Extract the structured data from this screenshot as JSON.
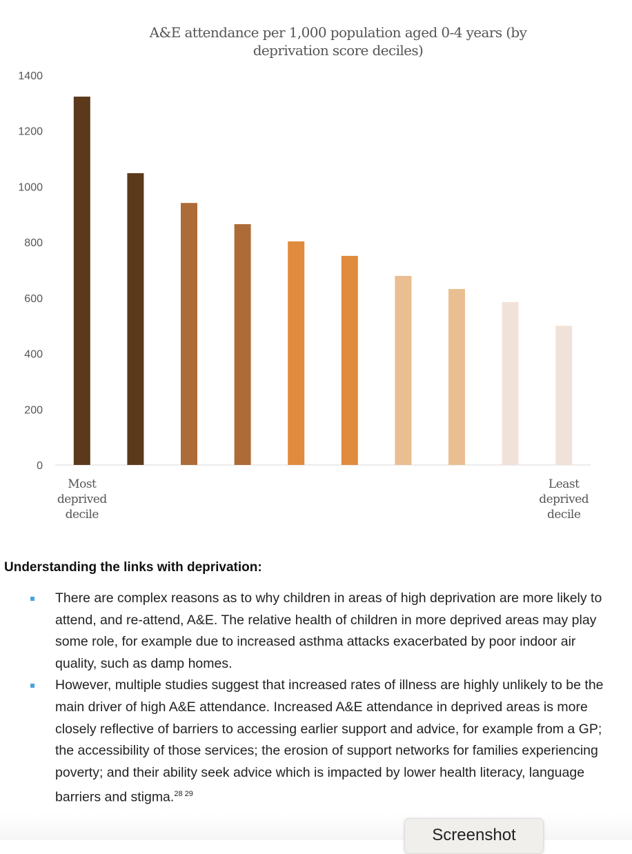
{
  "chart_data": {
    "type": "bar",
    "title": "A&E attendance per 1,000 population aged 0-4 years (by deprivation score deciles)",
    "categories": [
      "Most deprived decile",
      "",
      "",
      "",
      "",
      "",
      "",
      "",
      "",
      "Least deprived decile"
    ],
    "first_label": [
      "Most",
      "deprived",
      "decile"
    ],
    "last_label": [
      "Least",
      "deprived",
      "decile"
    ],
    "values": [
      1323,
      1048,
      941,
      865,
      803,
      751,
      679,
      632,
      585,
      500
    ],
    "colors": [
      "#5a3a1b",
      "#5a3a1b",
      "#ad6b37",
      "#ad6b37",
      "#e08b3e",
      "#e08b3e",
      "#e9bf91",
      "#e9bf91",
      "#f1e2d9",
      "#f1e2d9"
    ],
    "ylim": [
      0,
      1400
    ],
    "yticks": [
      0,
      200,
      400,
      600,
      800,
      1000,
      1200,
      1400
    ],
    "grid": false,
    "xlabel": "",
    "ylabel": ""
  },
  "section": {
    "heading": "Understanding the links with deprivation:",
    "bullets": [
      {
        "text": "There are complex reasons as to why children in areas of high deprivation are more likely to attend, and re-attend, A&E. The relative health of children in more deprived areas may play some role, for example due to increased asthma attacks exacerbated by poor indoor air quality, such as damp homes.",
        "refs": ""
      },
      {
        "text": "However, multiple studies suggest that increased rates of illness are highly unlikely to be the main driver of high A&E attendance. Increased A&E attendance in deprived areas is more closely reflective of barriers to accessing earlier support and advice, for example from a GP; the accessibility of those services; the erosion of support networks for families experiencing poverty; and their ability seek advice which is impacted by lower health literacy, language barriers and stigma.",
        "refs": "28 29"
      }
    ],
    "bullet_color": "#4aa3df"
  },
  "overlay": {
    "screenshot_button": "Screenshot"
  }
}
